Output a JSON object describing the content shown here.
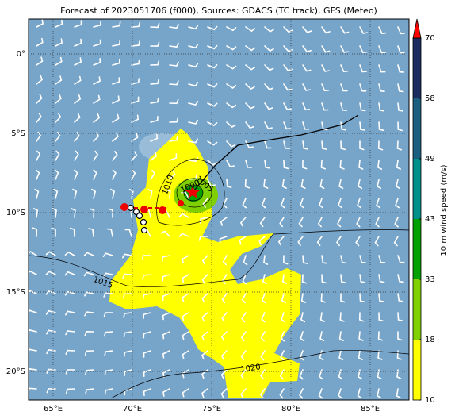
{
  "title": "Forecast of 2023051706 (f000), Sources: GDACS (TC track), GFS (Meteo)",
  "map": {
    "xlim": [
      63.45,
      87.45
    ],
    "ylim": [
      -21.8,
      2.2
    ],
    "xticks": [
      {
        "value": 65,
        "label": "65°E"
      },
      {
        "value": 70,
        "label": "70°E"
      },
      {
        "value": 75,
        "label": "75°E"
      },
      {
        "value": 80,
        "label": "80°E"
      },
      {
        "value": 85,
        "label": "85°E"
      }
    ],
    "yticks": [
      {
        "value": 0,
        "label": "0°"
      },
      {
        "value": -5,
        "label": "5°S"
      },
      {
        "value": -10,
        "label": "10°S"
      },
      {
        "value": -15,
        "label": "15°S"
      },
      {
        "value": -20,
        "label": "20°S"
      }
    ],
    "grid": true,
    "contour_labels": [
      "1010",
      "1015",
      "1020",
      "1000",
      "1005"
    ]
  },
  "colorbar": {
    "label": "10 m wind speed (m/s)",
    "levels": [
      10,
      18,
      33,
      43,
      49,
      58,
      70
    ],
    "colors": [
      "#ffff00",
      "#80d000",
      "#00a000",
      "#00908a",
      "#1a5f80",
      "#1c2c60"
    ],
    "extend_color": "#ff0000"
  }
}
